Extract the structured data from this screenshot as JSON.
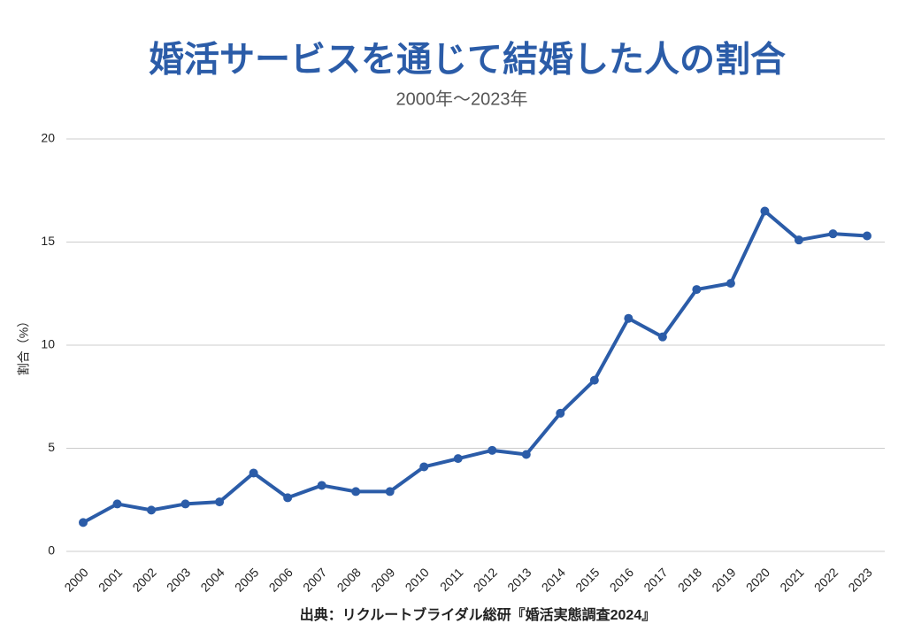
{
  "chart_data": {
    "type": "line",
    "title": "婚活サービスを通じて結婚した人の割合",
    "subtitle": "2000年〜2023年",
    "y_label": "割合（%）",
    "source": "出典：リクルートブライダル総研『婚活実態調査2024』",
    "categories": [
      "2000",
      "2001",
      "2002",
      "2003",
      "2004",
      "2005",
      "2006",
      "2007",
      "2008",
      "2009",
      "2010",
      "2011",
      "2012",
      "2013",
      "2014",
      "2015",
      "2016",
      "2017",
      "2018",
      "2019",
      "2020",
      "2021",
      "2022",
      "2023"
    ],
    "values": [
      1.4,
      2.3,
      2.0,
      2.3,
      2.4,
      3.8,
      2.6,
      3.2,
      2.9,
      2.9,
      4.1,
      4.5,
      4.9,
      4.7,
      6.7,
      8.3,
      11.3,
      10.4,
      12.7,
      13.0,
      16.5,
      15.1,
      15.4,
      15.3
    ],
    "color": "#2b5ca8",
    "ylim": [
      0,
      20
    ],
    "yticks": [
      0,
      5,
      10,
      15,
      20
    ],
    "grid": true
  }
}
